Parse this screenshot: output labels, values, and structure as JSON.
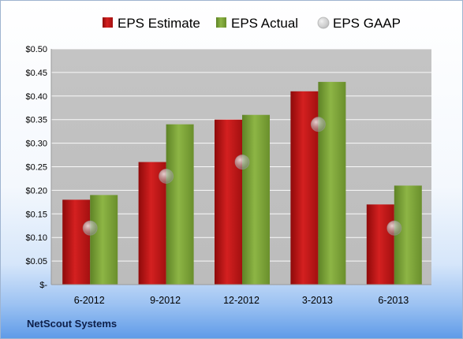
{
  "colors": {
    "estimate": "#c41818",
    "actual": "#80a83a",
    "gaap": "#b5b5b5",
    "plot_bg": "#c0c0c0"
  },
  "chart_data": {
    "type": "bar",
    "categories": [
      "6-2012",
      "9-2012",
      "12-2012",
      "3-2013",
      "6-2013"
    ],
    "series": [
      {
        "name": "EPS Estimate",
        "kind": "bar",
        "values": [
          0.18,
          0.26,
          0.35,
          0.41,
          0.17
        ]
      },
      {
        "name": "EPS Actual",
        "kind": "bar",
        "values": [
          0.19,
          0.34,
          0.36,
          0.43,
          0.21
        ]
      },
      {
        "name": "EPS GAAP",
        "kind": "marker",
        "values": [
          0.12,
          0.23,
          0.26,
          0.34,
          0.12
        ]
      }
    ],
    "y_ticks": [
      {
        "value": 0.0,
        "label": "$-"
      },
      {
        "value": 0.05,
        "label": "$0.05"
      },
      {
        "value": 0.1,
        "label": "$0.10"
      },
      {
        "value": 0.15,
        "label": "$0.15"
      },
      {
        "value": 0.2,
        "label": "$0.20"
      },
      {
        "value": 0.25,
        "label": "$0.25"
      },
      {
        "value": 0.3,
        "label": "$0.30"
      },
      {
        "value": 0.35,
        "label": "$0.35"
      },
      {
        "value": 0.4,
        "label": "$0.40"
      },
      {
        "value": 0.45,
        "label": "$0.45"
      },
      {
        "value": 0.5,
        "label": "$0.50"
      }
    ],
    "ylim": [
      0,
      0.5
    ],
    "grid": true,
    "legend_position": "top"
  },
  "footer": {
    "company": "NetScout Systems"
  }
}
